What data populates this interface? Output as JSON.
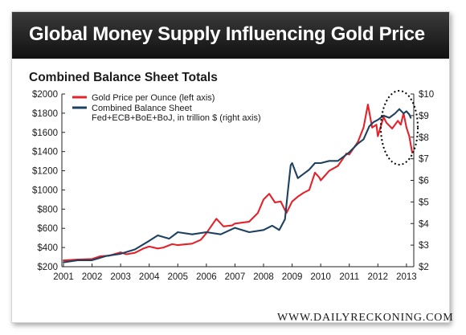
{
  "header": {
    "title": "Global Money Supply Influencing Gold Price"
  },
  "footer": {
    "brand": "WWW.DAILYRECKONING.COM"
  },
  "colors": {
    "gold": "#e3232b",
    "balance": "#1e4160",
    "header_bg": "#1f1f1f",
    "circle": "#000000"
  },
  "chart_data": {
    "type": "line",
    "title": "Combined Balance Sheet Totals",
    "xlabel": "",
    "ylabel": "",
    "x_ticks": [
      "2001",
      "2002",
      "2003",
      "2004",
      "2005",
      "2006",
      "2007",
      "2008",
      "2009",
      "2010",
      "2011",
      "2012",
      "2013"
    ],
    "y_left": {
      "ticks": [
        "$200",
        "$400",
        "$600",
        "$800",
        "$1000",
        "$1200",
        "$1400",
        "$1600",
        "$1800",
        "$2000"
      ],
      "range": [
        200,
        2000
      ]
    },
    "y_right": {
      "ticks": [
        "$2",
        "$3",
        "$4",
        "$5",
        "$6",
        "$7",
        "$8",
        "$9",
        "$10"
      ],
      "range": [
        2,
        10
      ]
    },
    "xlim": [
      2001,
      2013.2
    ],
    "grid": false,
    "legend_position": "top-left",
    "annotation": "dotted ellipse around 2012-2013 peak",
    "series": [
      {
        "name": "Gold Price per Ounce (left axis)",
        "axis": "left",
        "x": [
          2001.0,
          2001.5,
          2002.0,
          2002.3,
          2002.6,
          2003.0,
          2003.2,
          2003.5,
          2003.8,
          2004.0,
          2004.3,
          2004.5,
          2004.8,
          2005.0,
          2005.5,
          2005.8,
          2006.0,
          2006.35,
          2006.6,
          2006.9,
          2007.0,
          2007.5,
          2007.8,
          2008.0,
          2008.2,
          2008.4,
          2008.6,
          2008.8,
          2009.0,
          2009.2,
          2009.4,
          2009.6,
          2009.8,
          2009.95,
          2010.0,
          2010.3,
          2010.6,
          2010.9,
          2011.0,
          2011.3,
          2011.5,
          2011.65,
          2011.8,
          2011.95,
          2012.0,
          2012.2,
          2012.3,
          2012.5,
          2012.7,
          2012.8,
          2012.9,
          2013.0,
          2013.1,
          2013.2
        ],
        "y": [
          265,
          275,
          280,
          310,
          315,
          350,
          330,
          345,
          390,
          410,
          390,
          400,
          435,
          425,
          440,
          480,
          550,
          700,
          620,
          630,
          650,
          670,
          760,
          900,
          960,
          870,
          880,
          760,
          880,
          930,
          970,
          1000,
          1180,
          1130,
          1100,
          1200,
          1250,
          1380,
          1370,
          1500,
          1650,
          1890,
          1650,
          1680,
          1560,
          1760,
          1700,
          1640,
          1720,
          1680,
          1800,
          1650,
          1560,
          1390
        ]
      },
      {
        "name": "Combined Balance Sheet Fed+ECB+BoE+BoJ, in trillion $ (right axis)",
        "axis": "right",
        "x": [
          2001.0,
          2001.5,
          2002.0,
          2002.5,
          2003.0,
          2003.5,
          2004.0,
          2004.3,
          2004.7,
          2005.0,
          2005.5,
          2006.0,
          2006.5,
          2007.0,
          2007.5,
          2008.0,
          2008.3,
          2008.55,
          2008.75,
          2008.85,
          2008.95,
          2009.0,
          2009.2,
          2009.4,
          2009.6,
          2009.8,
          2010.0,
          2010.3,
          2010.6,
          2010.9,
          2011.0,
          2011.3,
          2011.5,
          2011.7,
          2011.85,
          2012.0,
          2012.2,
          2012.4,
          2012.6,
          2012.75,
          2012.9,
          2013.0,
          2013.1,
          2013.15
        ],
        "y": [
          2.2,
          2.3,
          2.3,
          2.5,
          2.6,
          2.8,
          3.2,
          3.45,
          3.3,
          3.6,
          3.5,
          3.6,
          3.5,
          3.8,
          3.6,
          3.7,
          3.9,
          3.7,
          4.2,
          5.5,
          6.7,
          6.8,
          6.1,
          6.3,
          6.5,
          6.8,
          6.8,
          6.9,
          6.9,
          7.2,
          7.3,
          7.7,
          7.9,
          8.5,
          8.7,
          8.8,
          9.0,
          8.9,
          9.1,
          9.3,
          9.1,
          9.2,
          9.05,
          8.9
        ]
      }
    ]
  }
}
